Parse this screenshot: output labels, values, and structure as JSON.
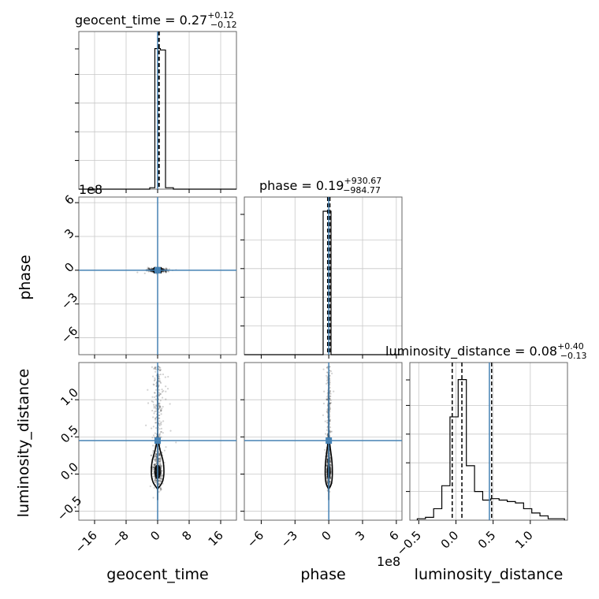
{
  "chart_data": {
    "type": "corner",
    "parameters": [
      "geocent_time",
      "phase",
      "luminosity_distance"
    ],
    "injection": {
      "geocent_time": 0,
      "phase": 0,
      "luminosity_distance": 0.45
    },
    "titles": [
      {
        "param": "geocent_time",
        "prefix": "geocent_time = 0.27",
        "upper": "+0.12",
        "lower": "−0.12"
      },
      {
        "param": "phase",
        "prefix": "phase = 0.19",
        "upper": "+930.67",
        "lower": "−984.77"
      },
      {
        "param": "luminosity_distance",
        "prefix": "luminosity_distance = 0.08",
        "upper": "+0.40",
        "lower": "−0.13"
      }
    ],
    "axes": {
      "geocent_time": {
        "range": [
          -20,
          20
        ],
        "ticks": [
          -16,
          -8,
          0,
          8,
          16
        ],
        "tick_labels": [
          "−16",
          "−8",
          "0",
          "8",
          "16"
        ]
      },
      "phase": {
        "range": [
          -7.5,
          6.5
        ],
        "ticks": [
          -6,
          -3,
          0,
          3,
          6
        ],
        "tick_labels": [
          "−6",
          "−3",
          "0",
          "3",
          "6"
        ],
        "offset": "1e8"
      },
      "luminosity_distance": {
        "range": [
          -0.62,
          1.5
        ],
        "ticks": [
          -0.5,
          0,
          0.5,
          1.0
        ],
        "tick_labels": [
          "−0.5",
          "0.0",
          "0.5",
          "1.0"
        ]
      }
    },
    "hist_geocent_time": {
      "edges": [
        -20,
        -18,
        -16,
        -14,
        -12,
        -10,
        -8,
        -6,
        -4,
        -2,
        -0.7,
        0.7,
        2,
        4,
        6,
        8,
        10,
        12,
        14,
        16,
        18,
        20
      ],
      "counts": [
        0,
        0,
        0,
        0,
        0,
        0,
        0,
        0,
        0,
        0.01,
        0.98,
        0.97,
        0.01,
        0,
        0,
        0,
        0,
        0,
        0,
        0,
        0
      ],
      "quantiles": [
        0.15,
        0.27,
        0.39
      ]
    },
    "hist_phase": {
      "edges": [
        -7.5,
        -6.8,
        -6.1,
        -5.4,
        -4.7,
        -4.0,
        -3.3,
        -2.6,
        -1.9,
        -1.2,
        -0.5,
        0.2,
        0.9,
        1.6,
        2.3,
        3.0,
        3.7,
        4.4,
        5.1,
        5.8,
        6.5
      ],
      "counts": [
        0,
        0,
        0,
        0,
        0,
        0,
        0,
        0,
        0,
        0,
        1.0,
        0,
        0,
        0,
        0,
        0,
        0,
        0,
        0,
        0
      ],
      "quantiles": [
        -0.1,
        0.0,
        0.1
      ]
    },
    "hist_luminosity_distance": {
      "edges": [
        -0.52,
        -0.41,
        -0.3,
        -0.19,
        -0.08,
        0.03,
        0.14,
        0.25,
        0.36,
        0.47,
        0.58,
        0.69,
        0.8,
        0.91,
        1.02,
        1.13,
        1.24,
        1.35,
        1.46
      ],
      "counts": [
        0.01,
        0.02,
        0.08,
        0.24,
        0.72,
        0.98,
        0.38,
        0.2,
        0.14,
        0.15,
        0.14,
        0.13,
        0.12,
        0.08,
        0.05,
        0.03,
        0.01,
        0.01
      ],
      "quantiles": [
        -0.05,
        0.08,
        0.48
      ]
    },
    "offset_text": "1e8"
  }
}
